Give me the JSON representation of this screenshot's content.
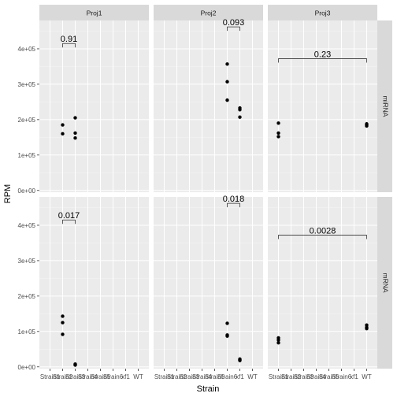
{
  "chart_data": {
    "type": "scatter",
    "xlabel": "Strain",
    "ylabel": "RPM",
    "x_categories": [
      "Strain1",
      "Strain2",
      "Strain3",
      "Strain4",
      "Strain5",
      "Strain6",
      "xf1",
      "WT"
    ],
    "x_tick_labels": [
      "Strain1",
      "Strain2",
      "Strain3",
      "Strain4",
      "Strain5",
      "Strain6",
      "xf1",
      "WT"
    ],
    "ylim": [
      -5000,
      480000
    ],
    "y_ticks": [
      0,
      100000,
      200000,
      300000,
      400000
    ],
    "y_tick_labels": [
      "0e+00",
      "1e+05",
      "2e+05",
      "3e+05",
      "4e+05"
    ],
    "grid": true,
    "facet_cols": [
      "Proj1",
      "Proj2",
      "Proj3"
    ],
    "facet_rows": [
      "miRNA",
      "mRNA"
    ],
    "panels": [
      {
        "col": "Proj1",
        "row": "miRNA",
        "points": [
          {
            "x": "Strain2",
            "y": 185000
          },
          {
            "x": "Strain2",
            "y": 160000
          },
          {
            "x": "Strain3",
            "y": 205000
          },
          {
            "x": "Strain3",
            "y": 162000
          },
          {
            "x": "Strain3",
            "y": 148000
          }
        ],
        "pvalue": {
          "label": "0.91",
          "from": "Strain2",
          "to": "Strain3",
          "y": 415000
        }
      },
      {
        "col": "Proj2",
        "row": "miRNA",
        "points": [
          {
            "x": "Strain6",
            "y": 357000
          },
          {
            "x": "Strain6",
            "y": 307000
          },
          {
            "x": "Strain6",
            "y": 255000
          },
          {
            "x": "xf1",
            "y": 233000
          },
          {
            "x": "xf1",
            "y": 228000
          },
          {
            "x": "xf1",
            "y": 207000
          }
        ],
        "pvalue": {
          "label": "0.093",
          "from": "Strain6",
          "to": "xf1",
          "y": 462000
        }
      },
      {
        "col": "Proj3",
        "row": "miRNA",
        "points": [
          {
            "x": "Strain1",
            "y": 190000
          },
          {
            "x": "Strain1",
            "y": 162000
          },
          {
            "x": "Strain1",
            "y": 152000
          },
          {
            "x": "WT",
            "y": 188000
          },
          {
            "x": "WT",
            "y": 185000
          },
          {
            "x": "WT",
            "y": 182000
          }
        ],
        "pvalue": {
          "label": "0.23",
          "from": "Strain1",
          "to": "WT",
          "y": 372000
        }
      },
      {
        "col": "Proj1",
        "row": "mRNA",
        "points": [
          {
            "x": "Strain2",
            "y": 143000
          },
          {
            "x": "Strain2",
            "y": 125000
          },
          {
            "x": "Strain2",
            "y": 92000
          },
          {
            "x": "Strain3",
            "y": 8000
          },
          {
            "x": "Strain3",
            "y": 6000
          },
          {
            "x": "Strain3",
            "y": 5000
          }
        ],
        "pvalue": {
          "label": "0.017",
          "from": "Strain2",
          "to": "Strain3",
          "y": 415000
        }
      },
      {
        "col": "Proj2",
        "row": "mRNA",
        "points": [
          {
            "x": "Strain6",
            "y": 123000
          },
          {
            "x": "Strain6",
            "y": 90000
          },
          {
            "x": "Strain6",
            "y": 87000
          },
          {
            "x": "xf1",
            "y": 22000
          },
          {
            "x": "xf1",
            "y": 20000
          },
          {
            "x": "xf1",
            "y": 18000
          }
        ],
        "pvalue": {
          "label": "0.018",
          "from": "Strain6",
          "to": "xf1",
          "y": 462000
        }
      },
      {
        "col": "Proj3",
        "row": "mRNA",
        "points": [
          {
            "x": "Strain1",
            "y": 82000
          },
          {
            "x": "Strain1",
            "y": 76000
          },
          {
            "x": "Strain1",
            "y": 68000
          },
          {
            "x": "WT",
            "y": 118000
          },
          {
            "x": "WT",
            "y": 112000
          },
          {
            "x": "WT",
            "y": 108000
          }
        ],
        "pvalue": {
          "label": "0.0028",
          "from": "Strain1",
          "to": "WT",
          "y": 372000
        }
      }
    ]
  }
}
